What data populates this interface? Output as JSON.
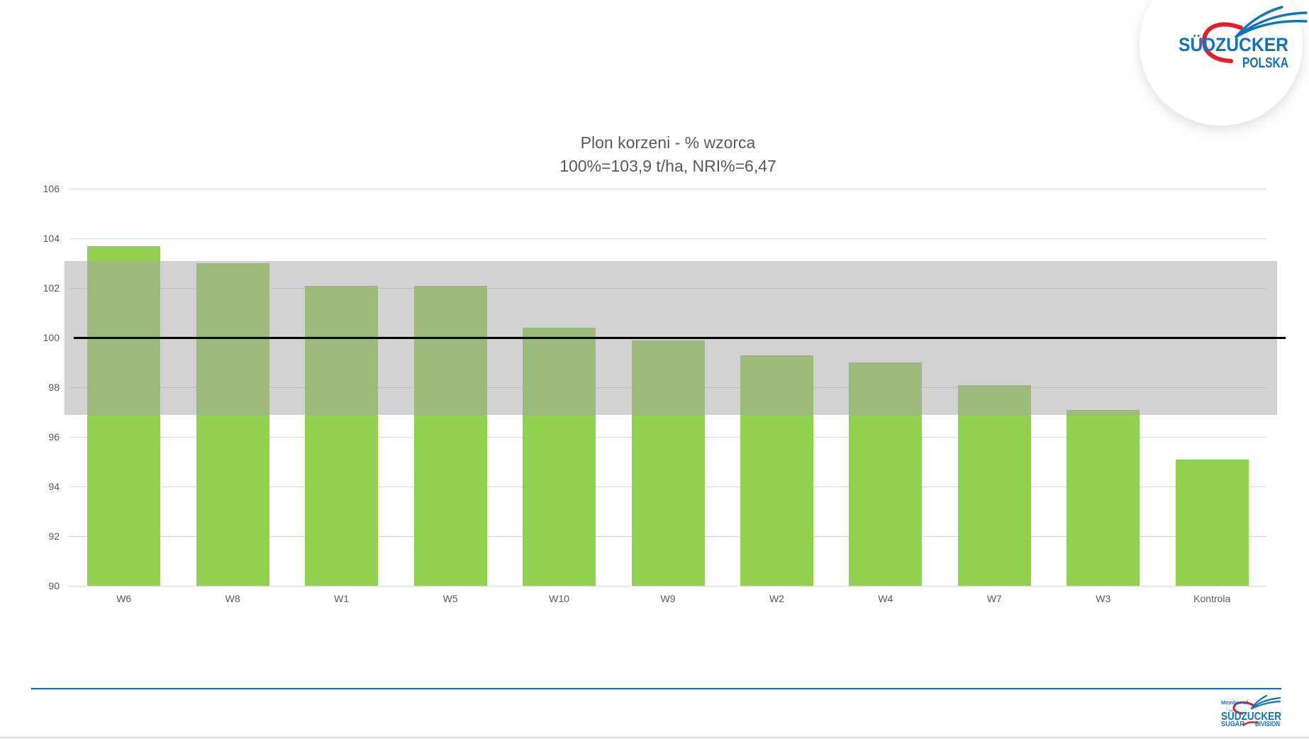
{
  "chart_data": {
    "type": "bar",
    "title": "Plon korzeni - % wzorca",
    "subtitle": "100%=103,9 t/ha, NRI%=6,47",
    "categories": [
      "W6",
      "W8",
      "W1",
      "W5",
      "W10",
      "W9",
      "W2",
      "W4",
      "W7",
      "W3",
      "Kontrola"
    ],
    "values": [
      103.7,
      103.0,
      102.1,
      102.1,
      100.4,
      99.9,
      99.3,
      99.0,
      98.1,
      97.1,
      95.1
    ],
    "ylim": [
      90,
      106
    ],
    "ytick_step": 2,
    "grid": true,
    "legend": "none",
    "reference_line_y": 100,
    "band": {
      "low": 96.9,
      "high": 103.1
    },
    "colors": {
      "bar": "#92d050",
      "band": "rgba(166,166,166,0.5)",
      "grid": "#d9d9d9",
      "reference_line": "#000000",
      "axis_text": "#595959",
      "title_text": "#595959"
    }
  },
  "header_logo": {
    "brand": "SÜDZUCKER",
    "country": "POLSKA",
    "blue": "#1173b9",
    "red": "#e31e2d"
  },
  "footer": {
    "rule_color": "#0072bc",
    "logo": {
      "member_of": "Member of",
      "brand": "SÜDZUCKER",
      "division_left": "SUGAR",
      "division_right": "DIVISION"
    }
  }
}
